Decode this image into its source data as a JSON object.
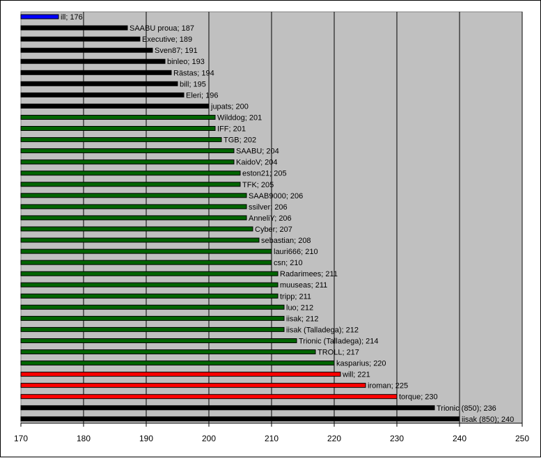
{
  "chart_data": {
    "type": "bar",
    "orientation": "horizontal",
    "xlim": [
      170,
      250
    ],
    "xticks": [
      170,
      180,
      190,
      200,
      210,
      220,
      230,
      240,
      250
    ],
    "grid": "vertical",
    "plot_background": "#c0c0c0",
    "colors": {
      "blue": "#0000ff",
      "black": "#000000",
      "green": "#006400",
      "red": "#ff0000"
    },
    "items": [
      {
        "label": "ill; 176",
        "value": 176,
        "color": "blue"
      },
      {
        "label": "SAABU proua; 187",
        "value": 187,
        "color": "black"
      },
      {
        "label": "Executive; 189",
        "value": 189,
        "color": "black"
      },
      {
        "label": "Sven87; 191",
        "value": 191,
        "color": "black"
      },
      {
        "label": "binleo; 193",
        "value": 193,
        "color": "black"
      },
      {
        "label": "Rästas; 194",
        "value": 194,
        "color": "black"
      },
      {
        "label": "bill; 195",
        "value": 195,
        "color": "black"
      },
      {
        "label": "Eleri; 196",
        "value": 196,
        "color": "black"
      },
      {
        "label": "jupats; 200",
        "value": 200,
        "color": "black"
      },
      {
        "label": "Wilddog; 201",
        "value": 201,
        "color": "green"
      },
      {
        "label": "IFF; 201",
        "value": 201,
        "color": "green"
      },
      {
        "label": "TGB; 202",
        "value": 202,
        "color": "green"
      },
      {
        "label": "SAABU; 204",
        "value": 204,
        "color": "green"
      },
      {
        "label": "KaidoV; 204",
        "value": 204,
        "color": "green"
      },
      {
        "label": "eston21; 205",
        "value": 205,
        "color": "green"
      },
      {
        "label": "TFK; 205",
        "value": 205,
        "color": "green"
      },
      {
        "label": "SAAB9000; 206",
        "value": 206,
        "color": "green"
      },
      {
        "label": "ssilver; 206",
        "value": 206,
        "color": "green"
      },
      {
        "label": "AnneliY; 206",
        "value": 206,
        "color": "green"
      },
      {
        "label": "Cyber; 207",
        "value": 207,
        "color": "green"
      },
      {
        "label": "sebastian; 208",
        "value": 208,
        "color": "green"
      },
      {
        "label": "lauri666; 210",
        "value": 210,
        "color": "green"
      },
      {
        "label": "csn; 210",
        "value": 210,
        "color": "green"
      },
      {
        "label": "Radarimees; 211",
        "value": 211,
        "color": "green"
      },
      {
        "label": "muuseas; 211",
        "value": 211,
        "color": "green"
      },
      {
        "label": "tripp; 211",
        "value": 211,
        "color": "green"
      },
      {
        "label": "luo; 212",
        "value": 212,
        "color": "green"
      },
      {
        "label": "iisak; 212",
        "value": 212,
        "color": "green"
      },
      {
        "label": "iisak (Talladega); 212",
        "value": 212,
        "color": "green"
      },
      {
        "label": "Trionic (Talladega); 214",
        "value": 214,
        "color": "green"
      },
      {
        "label": "TROLL; 217",
        "value": 217,
        "color": "green"
      },
      {
        "label": "kasparius; 220",
        "value": 220,
        "color": "green"
      },
      {
        "label": "will; 221",
        "value": 221,
        "color": "red"
      },
      {
        "label": "iroman; 225",
        "value": 225,
        "color": "red"
      },
      {
        "label": "torque; 230",
        "value": 230,
        "color": "red"
      },
      {
        "label": "Trionic (850); 236",
        "value": 236,
        "color": "black"
      },
      {
        "label": "iisak (850); 240",
        "value": 240,
        "color": "black"
      }
    ]
  }
}
